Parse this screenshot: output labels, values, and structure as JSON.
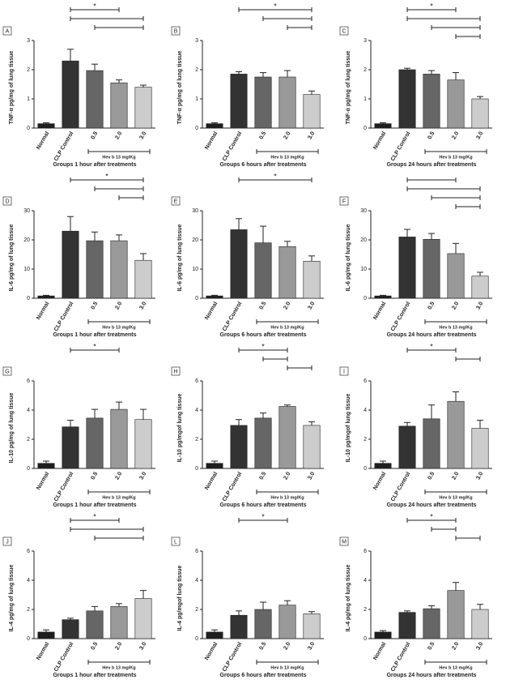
{
  "chart_data": [
    {
      "type": "bar",
      "panel": "A",
      "ylabel": "TNF-α pg/mg of lung tissue",
      "xlabel": "Groups 1 hour after treatments",
      "group_label": "Hev b 13 mg/Kg",
      "categories": [
        "Normal",
        "CLP Control",
        "0.5",
        "2.0",
        "3.0"
      ],
      "values": [
        0.15,
        2.3,
        1.97,
        1.55,
        1.4
      ],
      "errors": [
        0.03,
        0.4,
        0.22,
        0.1,
        0.07
      ],
      "colors": [
        "#1e1e1e",
        "#333333",
        "#666666",
        "#999999",
        "#cccccc"
      ],
      "ylim": [
        0,
        3
      ],
      "yticks": [
        0,
        1,
        2,
        3
      ],
      "brackets": [
        {
          "from": 1,
          "to": 3,
          "label": "*"
        },
        {
          "from": 1,
          "to": 4
        },
        {
          "from": 2,
          "to": 4
        }
      ]
    },
    {
      "type": "bar",
      "panel": "B",
      "ylabel": "TNF-α pg/mg of lung tissue",
      "xlabel": "Groups 6 hours after treatments",
      "group_label": "Hev b 13 mg/Kg",
      "categories": [
        "Normal",
        "CLP Control",
        "0.5",
        "2.0",
        "3.0"
      ],
      "values": [
        0.15,
        1.85,
        1.75,
        1.75,
        1.15
      ],
      "errors": [
        0.03,
        0.08,
        0.15,
        0.22,
        0.12
      ],
      "colors": [
        "#1e1e1e",
        "#333333",
        "#666666",
        "#999999",
        "#cccccc"
      ],
      "ylim": [
        0,
        3
      ],
      "yticks": [
        0,
        1,
        2,
        3
      ],
      "brackets": [
        {
          "from": 1,
          "to": 4,
          "label": "*"
        },
        {
          "from": 2,
          "to": 4
        },
        {
          "from": 3,
          "to": 4
        }
      ]
    },
    {
      "type": "bar",
      "panel": "C",
      "ylabel": "TNF-α pg/mg of lung tissue",
      "xlabel": "Groups 24 hours after treatments",
      "group_label": "Hev b 13 mg/Kg",
      "categories": [
        "Normal",
        "CLP Control",
        "0.5",
        "2.0",
        "3.0"
      ],
      "values": [
        0.15,
        2.0,
        1.85,
        1.65,
        1.0
      ],
      "errors": [
        0.03,
        0.05,
        0.12,
        0.25,
        0.08
      ],
      "colors": [
        "#1e1e1e",
        "#333333",
        "#666666",
        "#999999",
        "#cccccc"
      ],
      "ylim": [
        0,
        3
      ],
      "yticks": [
        0,
        1,
        2,
        3
      ],
      "brackets": [
        {
          "from": 1,
          "to": 3,
          "label": "*"
        },
        {
          "from": 1,
          "to": 4
        },
        {
          "from": 2,
          "to": 4
        },
        {
          "from": 3,
          "to": 4
        }
      ]
    },
    {
      "type": "bar",
      "panel": "D",
      "ylabel": "IL-6 pg/mg of lung tissue",
      "xlabel": "Groups 1 hour after treatments",
      "group_label": "Hev b 13 mg/Kg",
      "categories": [
        "Normal",
        "CLP Control",
        "0.5",
        "2.0",
        "3.0"
      ],
      "values": [
        0.8,
        23,
        19.7,
        19.7,
        13
      ],
      "errors": [
        0.2,
        5,
        3,
        2,
        2.3
      ],
      "colors": [
        "#1e1e1e",
        "#333333",
        "#666666",
        "#999999",
        "#cccccc"
      ],
      "ylim": [
        0,
        30
      ],
      "yticks": [
        0,
        10,
        20,
        30
      ],
      "brackets": [
        {
          "from": 1,
          "to": 4,
          "label": "*"
        },
        {
          "from": 2,
          "to": 4
        },
        {
          "from": 3,
          "to": 4
        }
      ]
    },
    {
      "type": "bar",
      "panel": "E",
      "ylabel": "IL-6 pg/mg of lung tissue",
      "xlabel": "Groups 6 hours after treatments",
      "group_label": "Hev b 13 mg/Kg",
      "categories": [
        "Normal",
        "CLP Control",
        "0.5",
        "2.0",
        "3.0"
      ],
      "values": [
        0.8,
        23.5,
        19,
        17.7,
        12.7
      ],
      "errors": [
        0.2,
        3.8,
        5.7,
        1.8,
        1.8
      ],
      "colors": [
        "#1e1e1e",
        "#333333",
        "#666666",
        "#999999",
        "#cccccc"
      ],
      "ylim": [
        0,
        30
      ],
      "yticks": [
        0,
        10,
        20,
        30
      ],
      "brackets": [
        {
          "from": 1,
          "to": 4,
          "label": "*"
        }
      ]
    },
    {
      "type": "bar",
      "panel": "F",
      "ylabel": "IL-6 pg/mg of lung tissue",
      "xlabel": "Groups 24 hours after treatments",
      "group_label": "Hev b 13 mg/Kg",
      "categories": [
        "Normal",
        "CLP Control",
        "0.5",
        "2.0",
        "3.0"
      ],
      "values": [
        0.8,
        21,
        20.2,
        15.3,
        7.6
      ],
      "errors": [
        0.2,
        2.6,
        2,
        3.5,
        1.3
      ],
      "colors": [
        "#1e1e1e",
        "#333333",
        "#666666",
        "#999999",
        "#cccccc"
      ],
      "ylim": [
        0,
        30
      ],
      "yticks": [
        0,
        10,
        20,
        30
      ],
      "brackets": [
        {
          "from": 1,
          "to": 3
        },
        {
          "from": 1,
          "to": 4
        },
        {
          "from": 2,
          "to": 4
        },
        {
          "from": 3,
          "to": 4
        }
      ]
    },
    {
      "type": "bar",
      "panel": "G",
      "ylabel": "IL-10 pg/mg of lung tissue",
      "xlabel": "Groups 1 hour after treatments",
      "group_label": "Hev b 13 mg/Kg",
      "categories": [
        "Normal",
        "CLP Control",
        "0.5",
        "2.0",
        "3.0"
      ],
      "values": [
        0.35,
        2.85,
        3.45,
        4.05,
        3.35
      ],
      "errors": [
        0.15,
        0.45,
        0.6,
        0.5,
        0.7
      ],
      "colors": [
        "#1e1e1e",
        "#333333",
        "#666666",
        "#999999",
        "#cccccc"
      ],
      "ylim": [
        0,
        6
      ],
      "yticks": [
        0,
        2,
        4,
        6
      ],
      "brackets": [
        {
          "from": 1,
          "to": 3,
          "label": "*"
        }
      ]
    },
    {
      "type": "bar",
      "panel": "H",
      "ylabel": "IL-10 pg/mgof lung tissue",
      "xlabel": "Groups 6 hours after treatments",
      "group_label": "Hev b 13 mg/Kg",
      "categories": [
        "Normal",
        "CLP Control",
        "0.5",
        "2.0",
        "3.0"
      ],
      "values": [
        0.35,
        2.95,
        3.45,
        4.25,
        2.95
      ],
      "errors": [
        0.15,
        0.4,
        0.35,
        0.1,
        0.25
      ],
      "colors": [
        "#1e1e1e",
        "#333333",
        "#666666",
        "#999999",
        "#cccccc"
      ],
      "ylim": [
        0,
        6
      ],
      "yticks": [
        0,
        2,
        4,
        6
      ],
      "brackets": [
        {
          "from": 1,
          "to": 3,
          "label": "*"
        },
        {
          "from": 2,
          "to": 3
        },
        {
          "from": 3,
          "to": 4
        }
      ]
    },
    {
      "type": "bar",
      "panel": "I",
      "ylabel": "IL-10 pg/mgof lung tissue",
      "xlabel": "Groups 24 hours after treatments",
      "group_label": "Hev b 13 mg/Kg",
      "categories": [
        "Normal",
        "CLP Control",
        "0.5",
        "2.0",
        "3.0"
      ],
      "values": [
        0.35,
        2.9,
        3.4,
        4.6,
        2.75
      ],
      "errors": [
        0.15,
        0.25,
        0.95,
        0.65,
        0.55
      ],
      "colors": [
        "#1e1e1e",
        "#333333",
        "#666666",
        "#999999",
        "#cccccc"
      ],
      "ylim": [
        0,
        6
      ],
      "yticks": [
        0,
        2,
        4,
        6
      ],
      "brackets": [
        {
          "from": 1,
          "to": 3,
          "label": "*"
        },
        {
          "from": 3,
          "to": 4
        }
      ]
    },
    {
      "type": "bar",
      "panel": "J",
      "ylabel": "IL-4 pg/mg of lung tissue",
      "xlabel": "Groups 1 hour after treatments",
      "group_label": "Hev b 13 mg/Kg",
      "categories": [
        "Normal",
        "CLP Control",
        "0.5",
        "2.0",
        "3.0"
      ],
      "values": [
        0.45,
        1.3,
        1.9,
        2.2,
        2.75
      ],
      "errors": [
        0.15,
        0.1,
        0.3,
        0.2,
        0.55
      ],
      "colors": [
        "#1e1e1e",
        "#333333",
        "#666666",
        "#999999",
        "#cccccc"
      ],
      "ylim": [
        0,
        6
      ],
      "yticks": [
        0,
        2,
        4,
        6
      ],
      "brackets": [
        {
          "from": 1,
          "to": 3,
          "label": "*"
        },
        {
          "from": 1,
          "to": 4
        },
        {
          "from": 2,
          "to": 4
        }
      ]
    },
    {
      "type": "bar",
      "panel": "L",
      "ylabel": "IL-4 pg/mgof lung tissue",
      "xlabel": "Groups 6 hours after treatments",
      "group_label": "Hev b 13 mg/Kg",
      "categories": [
        "Normal",
        "CLP Control",
        "0.5",
        "2.0",
        "3.0"
      ],
      "values": [
        0.45,
        1.6,
        2.0,
        2.3,
        1.7
      ],
      "errors": [
        0.15,
        0.3,
        0.5,
        0.3,
        0.15
      ],
      "colors": [
        "#1e1e1e",
        "#333333",
        "#666666",
        "#999999",
        "#cccccc"
      ],
      "ylim": [
        0,
        6
      ],
      "yticks": [
        0,
        2,
        4,
        6
      ],
      "brackets": [
        {
          "from": 1,
          "to": 3,
          "label": "*"
        }
      ]
    },
    {
      "type": "bar",
      "panel": "M",
      "ylabel": "IL-4 pg/mg of lung tissue",
      "xlabel": "Groups 24 hours after treatments",
      "group_label": "Hev b 13 mg/Kg",
      "categories": [
        "Normal",
        "CLP Control",
        "0.5",
        "2.0",
        "3.0"
      ],
      "values": [
        0.45,
        1.8,
        2.05,
        3.3,
        2.0
      ],
      "errors": [
        0.1,
        0.1,
        0.2,
        0.55,
        0.35
      ],
      "colors": [
        "#1e1e1e",
        "#333333",
        "#666666",
        "#999999",
        "#cccccc"
      ],
      "ylim": [
        0,
        6
      ],
      "yticks": [
        0,
        2,
        4,
        6
      ],
      "brackets": [
        {
          "from": 1,
          "to": 3,
          "label": "*"
        },
        {
          "from": 2,
          "to": 3
        },
        {
          "from": 3,
          "to": 4
        }
      ]
    }
  ]
}
